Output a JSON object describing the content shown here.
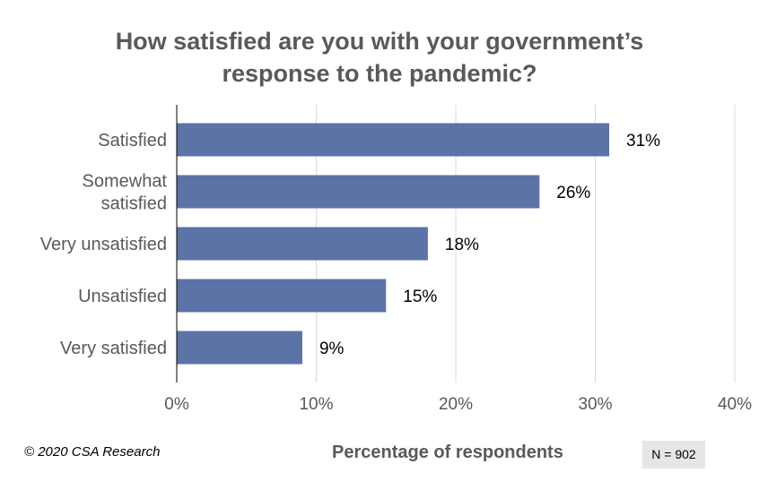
{
  "chart_data": {
    "type": "bar",
    "orientation": "horizontal",
    "title": [
      "How satisfied are you with your government’s",
      "response to the pandemic?"
    ],
    "categories": [
      [
        "Satisfied"
      ],
      [
        "Somewhat",
        "satisfied"
      ],
      [
        "Very unsatisfied"
      ],
      [
        "Unsatisfied"
      ],
      [
        "Very satisfied"
      ]
    ],
    "values": [
      31,
      26,
      18,
      15,
      9
    ],
    "data_labels": [
      "31%",
      "26%",
      "18%",
      "15%",
      "9%"
    ],
    "xlabel": "Percentage of respondents",
    "xlim": [
      0,
      40
    ],
    "xticks": [
      0,
      10,
      20,
      30,
      40
    ],
    "xtick_labels": [
      "0%",
      "10%",
      "20%",
      "30%",
      "40%"
    ],
    "grid": "vertical",
    "bar_color": "#5b73a6"
  },
  "footer": {
    "copyright": "© 2020 CSA Research",
    "sample_size": "N = 902"
  }
}
